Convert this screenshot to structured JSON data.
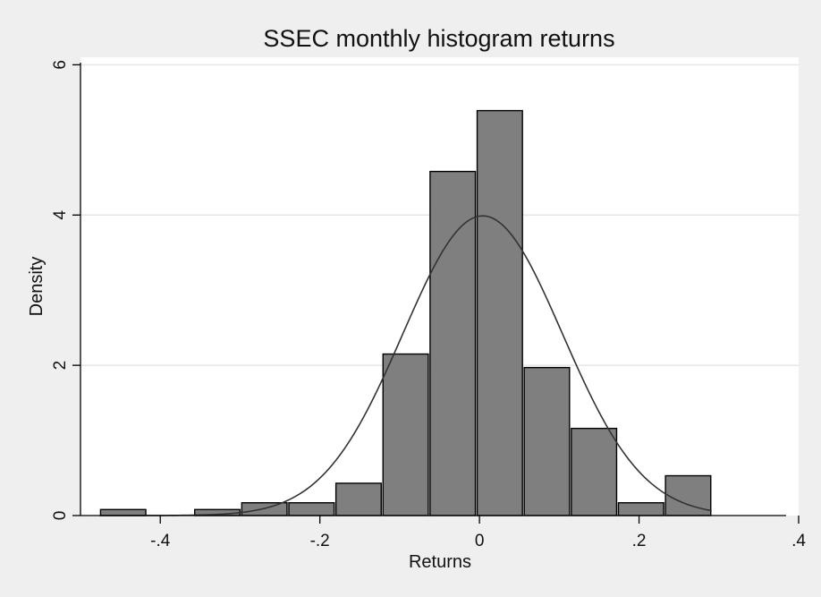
{
  "chart_data": {
    "type": "bar",
    "title": "SSEC monthly histogram returns",
    "xlabel": "Returns",
    "ylabel": "Density",
    "xlim": [
      -0.5,
      0.4
    ],
    "ylim": [
      0,
      6.1
    ],
    "x_ticks": [
      {
        "value": -0.4,
        "label": "-.4"
      },
      {
        "value": -0.2,
        "label": "-.2"
      },
      {
        "value": 0,
        "label": "0"
      },
      {
        "value": 0.2,
        "label": ".2"
      },
      {
        "value": 0.4,
        "label": ".4"
      }
    ],
    "y_ticks": [
      {
        "value": 0,
        "label": "0"
      },
      {
        "value": 2,
        "label": "2"
      },
      {
        "value": 4,
        "label": "4"
      },
      {
        "value": 6,
        "label": "6"
      }
    ],
    "grid": true,
    "bins": [
      {
        "start": -0.476,
        "end": -0.417,
        "density": 0.08
      },
      {
        "start": -0.417,
        "end": -0.358,
        "density": 0.0
      },
      {
        "start": -0.358,
        "end": -0.299,
        "density": 0.08
      },
      {
        "start": -0.299,
        "end": -0.24,
        "density": 0.17
      },
      {
        "start": -0.24,
        "end": -0.181,
        "density": 0.17
      },
      {
        "start": -0.181,
        "end": -0.122,
        "density": 0.43
      },
      {
        "start": -0.122,
        "end": -0.063,
        "density": 2.15
      },
      {
        "start": -0.063,
        "end": -0.004,
        "density": 4.58
      },
      {
        "start": -0.004,
        "end": 0.055,
        "density": 5.39
      },
      {
        "start": 0.055,
        "end": 0.114,
        "density": 1.97
      },
      {
        "start": 0.114,
        "end": 0.173,
        "density": 1.16
      },
      {
        "start": 0.173,
        "end": 0.232,
        "density": 0.17
      },
      {
        "start": 0.232,
        "end": 0.291,
        "density": 0.53
      }
    ],
    "normal_curve": {
      "mean": 0.004,
      "sd": 0.1,
      "x_range": [
        -0.476,
        0.291
      ]
    },
    "colors": {
      "background": "#efefef",
      "plot_bg": "#ffffff",
      "bar_fill": "#7f7f7f",
      "bar_stroke": "#000000",
      "curve": "#333333",
      "grid": "#e6e6e6"
    }
  }
}
